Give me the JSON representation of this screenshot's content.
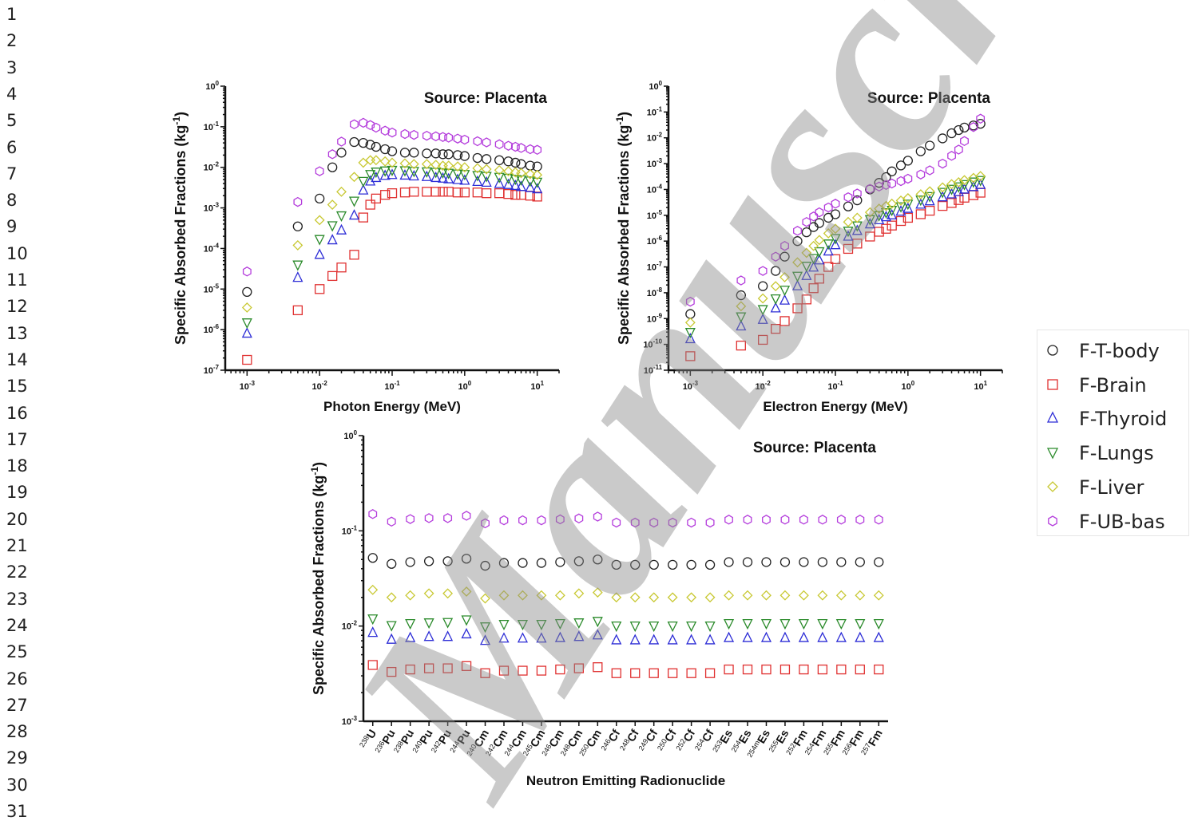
{
  "line_numbers": [
    "1",
    "2",
    "3",
    "4",
    "5",
    "6",
    "7",
    "8",
    "9",
    "10",
    "11",
    "12",
    "13",
    "14",
    "15",
    "16",
    "17",
    "18",
    "19",
    "20",
    "21",
    "22",
    "23",
    "24",
    "25",
    "26",
    "27",
    "28",
    "29",
    "30",
    "31"
  ],
  "watermark_text": "Manuscript",
  "legend": [
    {
      "label": "F-T-body",
      "marker": "circle",
      "color": "#222222"
    },
    {
      "label": "F-Brain",
      "marker": "square",
      "color": "#e03030"
    },
    {
      "label": "F-Thyroid",
      "marker": "triangle-up",
      "color": "#2d2dd6"
    },
    {
      "label": "F-Lungs",
      "marker": "triangle-down",
      "color": "#2a8a2a"
    },
    {
      "label": "F-Liver",
      "marker": "diamond",
      "color": "#c8c832"
    },
    {
      "label": "F-UB-bas",
      "marker": "hexagon",
      "color": "#b43cdc"
    }
  ],
  "chart_data": [
    {
      "type": "scatter",
      "title": "Source: Placenta",
      "xlabel": "Photon Energy (MeV)",
      "ylabel": "Specific Absorbed Fractions (kg",
      "ylabel_sup": "-1",
      "ylabel_end": ")",
      "xscale": "log",
      "yscale": "log",
      "xlim": [
        0.0005,
        20
      ],
      "ylim": [
        1e-07,
        1
      ],
      "x_ticks": [
        {
          "b": "10",
          "e": "-3"
        },
        {
          "b": "10",
          "e": "-2"
        },
        {
          "b": "10",
          "e": "-1"
        },
        {
          "b": "10",
          "e": "0"
        },
        {
          "b": "10",
          "e": "1"
        }
      ],
      "y_ticks": [
        {
          "b": "10",
          "e": "-7"
        },
        {
          "b": "10",
          "e": "-6"
        },
        {
          "b": "10",
          "e": "-5"
        },
        {
          "b": "10",
          "e": "-4"
        },
        {
          "b": "10",
          "e": "-3"
        },
        {
          "b": "10",
          "e": "-2"
        },
        {
          "b": "10",
          "e": "-1"
        },
        {
          "b": "10",
          "e": "0"
        }
      ],
      "x": [
        0.001,
        0.005,
        0.01,
        0.015,
        0.02,
        0.03,
        0.04,
        0.05,
        0.06,
        0.08,
        0.1,
        0.15,
        0.2,
        0.3,
        0.4,
        0.5,
        0.6,
        0.8,
        1,
        1.5,
        2,
        3,
        4,
        5,
        6,
        8,
        10
      ],
      "series": [
        {
          "name": "F-T-body",
          "values": [
            8.5e-06,
            0.00035,
            0.0017,
            0.01,
            0.023,
            0.042,
            0.04,
            0.036,
            0.032,
            0.028,
            0.025,
            0.023,
            0.023,
            0.022,
            0.022,
            0.021,
            0.021,
            0.02,
            0.019,
            0.017,
            0.016,
            0.015,
            0.014,
            0.013,
            0.012,
            0.011,
            0.0105
          ]
        },
        {
          "name": "F-Brain",
          "values": [
            1.8e-07,
            3e-06,
            1e-05,
            2.1e-05,
            3.4e-05,
            7e-05,
            0.00058,
            0.0012,
            0.0017,
            0.0021,
            0.0023,
            0.0024,
            0.0025,
            0.0025,
            0.0025,
            0.0025,
            0.0025,
            0.0024,
            0.0024,
            0.0024,
            0.0023,
            0.0023,
            0.0022,
            0.0021,
            0.0021,
            0.002,
            0.0019
          ]
        },
        {
          "name": "F-Thyroid",
          "values": [
            8e-07,
            1.9e-05,
            7e-05,
            0.00016,
            0.00028,
            0.00065,
            0.0027,
            0.0045,
            0.0055,
            0.0062,
            0.0065,
            0.0063,
            0.006,
            0.0058,
            0.0055,
            0.0053,
            0.0051,
            0.0049,
            0.0047,
            0.0044,
            0.0042,
            0.0039,
            0.0037,
            0.0035,
            0.0033,
            0.0031,
            0.0029
          ]
        },
        {
          "name": "F-Lungs",
          "values": [
            1.5e-06,
            4e-05,
            0.00017,
            0.00037,
            0.00065,
            0.0015,
            0.0046,
            0.0068,
            0.0078,
            0.0083,
            0.0086,
            0.0084,
            0.0081,
            0.0079,
            0.0077,
            0.0075,
            0.0073,
            0.007,
            0.0068,
            0.0064,
            0.0061,
            0.0058,
            0.0055,
            0.0052,
            0.005,
            0.0047,
            0.0044
          ]
        },
        {
          "name": "F-Liver",
          "values": [
            3.5e-06,
            0.00012,
            0.0005,
            0.0012,
            0.0025,
            0.0058,
            0.013,
            0.015,
            0.015,
            0.014,
            0.013,
            0.0125,
            0.012,
            0.012,
            0.0115,
            0.011,
            0.011,
            0.0105,
            0.01,
            0.0095,
            0.009,
            0.0085,
            0.008,
            0.0075,
            0.0072,
            0.0068,
            0.0065
          ]
        },
        {
          "name": "F-UB-bas",
          "values": [
            2.7e-05,
            0.0014,
            0.008,
            0.021,
            0.043,
            0.115,
            0.125,
            0.11,
            0.095,
            0.08,
            0.072,
            0.066,
            0.063,
            0.06,
            0.058,
            0.056,
            0.054,
            0.051,
            0.048,
            0.044,
            0.041,
            0.037,
            0.034,
            0.032,
            0.03,
            0.028,
            0.027
          ]
        }
      ]
    },
    {
      "type": "scatter",
      "title": "Source: Placenta",
      "xlabel": "Electron Energy (MeV)",
      "ylabel": "Specific Absorbed Fractions (kg",
      "ylabel_sup": "-1",
      "ylabel_end": ")",
      "xscale": "log",
      "yscale": "log",
      "xlim": [
        0.0005,
        20
      ],
      "ylim": [
        1e-11,
        1
      ],
      "x_ticks": [
        {
          "b": "10",
          "e": "-3"
        },
        {
          "b": "10",
          "e": "-2"
        },
        {
          "b": "10",
          "e": "-1"
        },
        {
          "b": "10",
          "e": "0"
        },
        {
          "b": "10",
          "e": "1"
        }
      ],
      "y_ticks": [
        {
          "b": "10",
          "e": "-11"
        },
        {
          "b": "10",
          "e": "-10"
        },
        {
          "b": "10",
          "e": "-9"
        },
        {
          "b": "10",
          "e": "-8"
        },
        {
          "b": "10",
          "e": "-7"
        },
        {
          "b": "10",
          "e": "-6"
        },
        {
          "b": "10",
          "e": "-5"
        },
        {
          "b": "10",
          "e": "-4"
        },
        {
          "b": "10",
          "e": "-3"
        },
        {
          "b": "10",
          "e": "-2"
        },
        {
          "b": "10",
          "e": "-1"
        },
        {
          "b": "10",
          "e": "0"
        }
      ],
      "x": [
        0.001,
        0.005,
        0.01,
        0.015,
        0.02,
        0.03,
        0.04,
        0.05,
        0.06,
        0.08,
        0.1,
        0.15,
        0.2,
        0.3,
        0.4,
        0.5,
        0.6,
        0.8,
        1,
        1.5,
        2,
        3,
        4,
        5,
        6,
        8,
        10
      ],
      "series": [
        {
          "name": "F-T-body",
          "values": [
            1.5e-09,
            8e-09,
            1.8e-08,
            7e-08,
            2.5e-07,
            1e-06,
            2.2e-06,
            3.5e-06,
            5e-06,
            8e-06,
            1.1e-05,
            2.2e-05,
            3.8e-05,
            0.0001,
            0.00018,
            0.0003,
            0.0005,
            0.00085,
            0.0013,
            0.003,
            0.005,
            0.0095,
            0.015,
            0.02,
            0.025,
            0.03,
            0.035
          ]
        },
        {
          "name": "F-Brain",
          "values": [
            3.5e-11,
            9e-11,
            1.5e-10,
            4e-10,
            8e-10,
            2.5e-09,
            5.5e-09,
            1.5e-08,
            3.5e-08,
            1e-07,
            2e-07,
            5e-07,
            8e-07,
            1.5e-06,
            2.3e-06,
            3e-06,
            4e-06,
            6e-06,
            8e-06,
            1.1e-05,
            1.5e-05,
            2.3e-05,
            3e-05,
            3.9e-05,
            4.8e-05,
            6e-05,
            7.5e-05
          ]
        },
        {
          "name": "F-Thyroid",
          "values": [
            1.6e-10,
            5e-10,
            9e-10,
            2.5e-09,
            5e-09,
            1.8e-08,
            4.5e-08,
            9.5e-08,
            1.8e-07,
            4e-07,
            7e-07,
            1.5e-06,
            2.5e-06,
            4.5e-06,
            6.5e-06,
            8.5e-06,
            1e-05,
            1.4e-05,
            1.8e-05,
            2.6e-05,
            3.5e-05,
            5e-05,
            6.5e-05,
            8e-05,
            0.0001,
            0.000125,
            0.00015
          ]
        },
        {
          "name": "F-Lungs",
          "values": [
            3e-10,
            1.2e-09,
            2.3e-09,
            6e-09,
            1.3e-08,
            4.5e-08,
            1.1e-07,
            2.2e-07,
            4e-07,
            8e-07,
            1.3e-06,
            2.5e-06,
            4e-06,
            7e-06,
            1e-05,
            1.3e-05,
            1.6e-05,
            2.2e-05,
            2.8e-05,
            4e-05,
            5.5e-05,
            8e-05,
            0.000105,
            0.00013,
            0.00016,
            0.0002,
            0.00023
          ]
        },
        {
          "name": "F-Liver",
          "values": [
            7e-10,
            3e-09,
            6e-09,
            1.8e-08,
            4e-08,
            1.5e-07,
            3.5e-07,
            6.5e-07,
            1.1e-06,
            2e-06,
            3e-06,
            5.5e-06,
            8e-06,
            1.3e-05,
            1.8e-05,
            2.3e-05,
            2.8e-05,
            3.7e-05,
            4.6e-05,
            6.5e-05,
            8.5e-05,
            0.00012,
            0.00016,
            0.00019,
            0.00023,
            0.00028,
            0.00033
          ]
        },
        {
          "name": "F-UB-bas",
          "values": [
            4.5e-09,
            3e-08,
            7e-08,
            2.5e-07,
            6.5e-07,
            2.5e-06,
            5.5e-06,
            9e-06,
            1.3e-05,
            2e-05,
            2.8e-05,
            5e-05,
            7e-05,
            0.000105,
            0.00013,
            0.00015,
            0.00017,
            0.00021,
            0.00026,
            0.00038,
            0.00055,
            0.001,
            0.002,
            0.0035,
            0.0075,
            0.026,
            0.055
          ]
        }
      ]
    },
    {
      "type": "scatter",
      "title": "Source: Placenta",
      "xlabel": "Neutron Emitting Radionuclide",
      "ylabel": "Specific Absorbed Fractions (kg",
      "ylabel_sup": "-1",
      "ylabel_end": ")",
      "yscale": "log",
      "ylim": [
        0.001,
        1
      ],
      "y_ticks": [
        {
          "b": "10",
          "e": "-3"
        },
        {
          "b": "10",
          "e": "-2"
        },
        {
          "b": "10",
          "e": "-1"
        },
        {
          "b": "10",
          "e": "0"
        }
      ],
      "categories": [
        {
          "mass": "238",
          "el": "U"
        },
        {
          "mass": "236",
          "el": "Pu"
        },
        {
          "mass": "238",
          "el": "Pu"
        },
        {
          "mass": "240",
          "el": "Pu"
        },
        {
          "mass": "242",
          "el": "Pu"
        },
        {
          "mass": "244",
          "el": "Pu"
        },
        {
          "mass": "240",
          "el": "Cm"
        },
        {
          "mass": "242",
          "el": "Cm"
        },
        {
          "mass": "244",
          "el": "Cm"
        },
        {
          "mass": "245",
          "el": "Cm"
        },
        {
          "mass": "246",
          "el": "Cm"
        },
        {
          "mass": "248",
          "el": "Cm"
        },
        {
          "mass": "250",
          "el": "Cm"
        },
        {
          "mass": "246",
          "el": "Cf"
        },
        {
          "mass": "248",
          "el": "Cf"
        },
        {
          "mass": "249",
          "el": "Cf"
        },
        {
          "mass": "250",
          "el": "Cf"
        },
        {
          "mass": "252",
          "el": "Cf"
        },
        {
          "mass": "254",
          "el": "Cf"
        },
        {
          "mass": "253",
          "el": "Es"
        },
        {
          "mass": "254",
          "el": "Es"
        },
        {
          "mass": "254m",
          "el": "Es"
        },
        {
          "mass": "255",
          "el": "Es"
        },
        {
          "mass": "252",
          "el": "Fm"
        },
        {
          "mass": "254",
          "el": "Fm"
        },
        {
          "mass": "255",
          "el": "Fm"
        },
        {
          "mass": "256",
          "el": "Fm"
        },
        {
          "mass": "257",
          "el": "Fm"
        }
      ],
      "series": [
        {
          "name": "F-T-body",
          "values": [
            0.052,
            0.045,
            0.047,
            0.048,
            0.048,
            0.051,
            0.043,
            0.046,
            0.046,
            0.046,
            0.047,
            0.048,
            0.05,
            0.044,
            0.044,
            0.044,
            0.044,
            0.044,
            0.044,
            0.047,
            0.047,
            0.047,
            0.047,
            0.047,
            0.047,
            0.047,
            0.047,
            0.047
          ]
        },
        {
          "name": "F-Brain",
          "values": [
            0.0039,
            0.0033,
            0.0035,
            0.0036,
            0.0036,
            0.0038,
            0.0032,
            0.0034,
            0.0034,
            0.0034,
            0.0035,
            0.0036,
            0.0037,
            0.0032,
            0.0032,
            0.0032,
            0.0032,
            0.0032,
            0.0032,
            0.0035,
            0.0035,
            0.0035,
            0.0035,
            0.0035,
            0.0035,
            0.0035,
            0.0035,
            0.0035
          ]
        },
        {
          "name": "F-Thyroid",
          "values": [
            0.0085,
            0.0072,
            0.0075,
            0.0077,
            0.0077,
            0.0082,
            0.007,
            0.0074,
            0.0074,
            0.0074,
            0.0075,
            0.0077,
            0.008,
            0.0071,
            0.0071,
            0.0071,
            0.0071,
            0.0071,
            0.0071,
            0.0075,
            0.0075,
            0.0075,
            0.0075,
            0.0075,
            0.0075,
            0.0075,
            0.0075,
            0.0075
          ]
        },
        {
          "name": "F-Lungs",
          "values": [
            0.012,
            0.0102,
            0.0107,
            0.0109,
            0.011,
            0.0117,
            0.0099,
            0.0105,
            0.0105,
            0.0105,
            0.0107,
            0.0109,
            0.0113,
            0.0101,
            0.0101,
            0.0101,
            0.0101,
            0.0101,
            0.0101,
            0.0107,
            0.0107,
            0.0107,
            0.0107,
            0.0107,
            0.0107,
            0.0107,
            0.0107,
            0.0107
          ]
        },
        {
          "name": "F-Liver",
          "values": [
            0.024,
            0.02,
            0.021,
            0.022,
            0.022,
            0.023,
            0.0195,
            0.021,
            0.021,
            0.021,
            0.021,
            0.022,
            0.0225,
            0.02,
            0.02,
            0.02,
            0.02,
            0.02,
            0.02,
            0.021,
            0.021,
            0.021,
            0.021,
            0.021,
            0.021,
            0.021,
            0.021,
            0.021
          ]
        },
        {
          "name": "F-UB-bas",
          "values": [
            0.15,
            0.125,
            0.133,
            0.136,
            0.136,
            0.144,
            0.12,
            0.129,
            0.129,
            0.129,
            0.132,
            0.135,
            0.141,
            0.122,
            0.122,
            0.122,
            0.122,
            0.122,
            0.122,
            0.131,
            0.131,
            0.131,
            0.131,
            0.131,
            0.131,
            0.131,
            0.131,
            0.131
          ]
        }
      ]
    }
  ]
}
